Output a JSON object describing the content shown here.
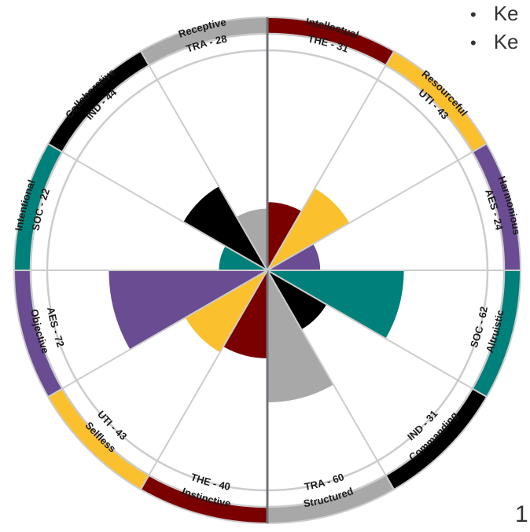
{
  "side_text": {
    "line1": "Ke",
    "line2": "Ke",
    "page_number": "1"
  },
  "colors": {
    "THE": "#7a0000",
    "UTI": "#fbc02d",
    "AES": "#6a4c93",
    "SOC": "#00807a",
    "IND": "#000000",
    "TRA": "#a8a8a8",
    "divider": "#6e7379",
    "grid": "#cccccc"
  },
  "chart_data": {
    "type": "polar-area",
    "max": 100,
    "segments": [
      {
        "name": "Intellectual",
        "code": "THE",
        "value": 31,
        "label": "THE - 31",
        "color": "#7a0000"
      },
      {
        "name": "Resourceful",
        "code": "UTI",
        "value": 43,
        "label": "UTI - 43",
        "color": "#fbc02d"
      },
      {
        "name": "Harmonious",
        "code": "AES",
        "value": 24,
        "label": "AES - 24",
        "color": "#6a4c93"
      },
      {
        "name": "Altruistic",
        "code": "SOC",
        "value": 62,
        "label": "SOC - 62",
        "color": "#00807a"
      },
      {
        "name": "Commanding",
        "code": "IND",
        "value": 31,
        "label": "IND - 31",
        "color": "#000000"
      },
      {
        "name": "Structured",
        "code": "TRA",
        "value": 60,
        "label": "TRA - 60",
        "color": "#a8a8a8"
      },
      {
        "name": "Instinctive",
        "code": "THE",
        "value": 40,
        "label": "THE - 40",
        "color": "#7a0000"
      },
      {
        "name": "Selfless",
        "code": "UTI",
        "value": 43,
        "label": "UTI - 43",
        "color": "#fbc02d"
      },
      {
        "name": "Objective",
        "code": "AES",
        "value": 72,
        "label": "AES - 72",
        "color": "#6a4c93"
      },
      {
        "name": "Intentional",
        "code": "SOC",
        "value": 22,
        "label": "SOC - 22",
        "color": "#00807a"
      },
      {
        "name": "Collaborative",
        "code": "IND",
        "value": 44,
        "label": "IND - 44",
        "color": "#000000"
      },
      {
        "name": "Receptive",
        "code": "TRA",
        "value": 28,
        "label": "TRA - 28",
        "color": "#a8a8a8"
      }
    ]
  }
}
